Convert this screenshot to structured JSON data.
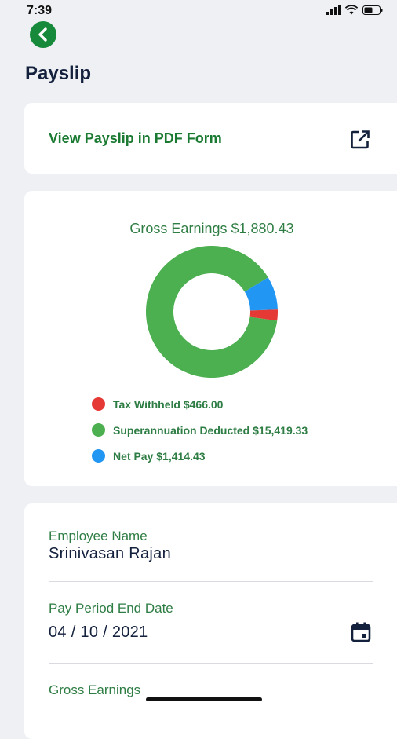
{
  "status": {
    "time": "7:39"
  },
  "page": {
    "title": "Payslip"
  },
  "pdf_link": {
    "label": "View Payslip in PDF Form",
    "icon": "external-link-icon"
  },
  "chart": {
    "title": "Gross Earnings $1,880.43",
    "legend": [
      {
        "label": "Tax Withheld $466.00",
        "color": "#e53935"
      },
      {
        "label": "Superannuation Deducted $15,419.33",
        "color": "#4caf50"
      },
      {
        "label": "Net Pay $1,414.43",
        "color": "#2196f3"
      }
    ]
  },
  "chart_data": {
    "type": "pie",
    "title": "Gross Earnings $1,880.43",
    "categories": [
      "Tax Withheld",
      "Superannuation Deducted",
      "Net Pay"
    ],
    "values": [
      466.0,
      15419.33,
      1414.43
    ],
    "colors": [
      "#e53935",
      "#4caf50",
      "#2196f3"
    ],
    "donut": true,
    "legend": "bottom-left"
  },
  "details": {
    "employee_name_label": "Employee Name",
    "employee_name": "Srinivasan Rajan",
    "pay_period_label": "Pay Period End Date",
    "pay_period": "04 / 10 / 2021",
    "gross_earnings_label": "Gross Earnings"
  },
  "colors": {
    "accent": "#168a3a",
    "text_green": "#2e7d44",
    "dark": "#14213d"
  }
}
